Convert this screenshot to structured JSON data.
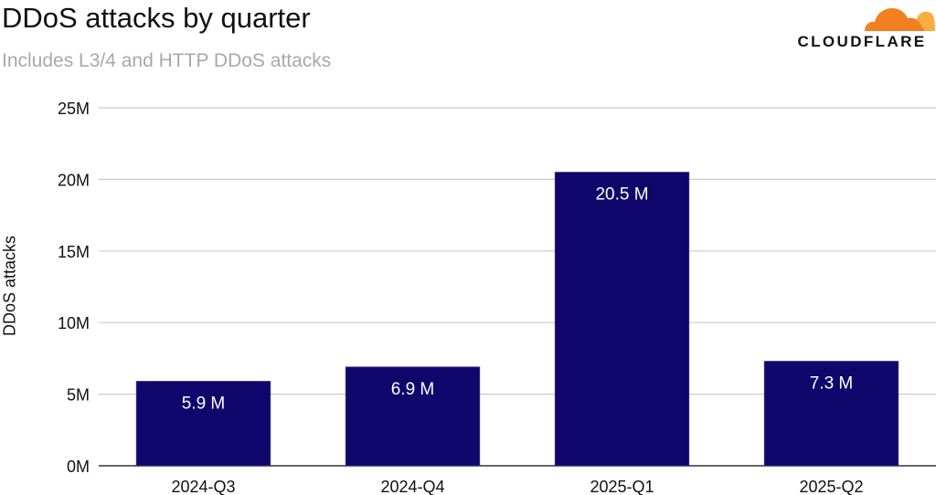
{
  "header": {
    "title": "DDoS attacks by quarter",
    "subtitle": "Includes L3/4 and HTTP DDoS attacks"
  },
  "logo": {
    "text": "CLOUDFLARE",
    "icon": "cloud-icon",
    "colors": {
      "orange_dark": "#f38020",
      "orange_light": "#faae40"
    }
  },
  "chart_data": {
    "type": "bar",
    "title": "DDoS attacks by quarter",
    "subtitle": "Includes L3/4 and HTTP DDoS attacks",
    "xlabel": "",
    "ylabel": "DDoS attacks",
    "categories": [
      "2024-Q3",
      "2024-Q4",
      "2025-Q1",
      "2025-Q2"
    ],
    "values": [
      5.9,
      6.9,
      20.5,
      7.3
    ],
    "value_unit": "M",
    "data_labels": [
      "5.9 M",
      "6.9 M",
      "20.5 M",
      "7.3 M"
    ],
    "ylim": [
      0,
      25
    ],
    "yticks": [
      0,
      5,
      10,
      15,
      20,
      25
    ],
    "ytick_labels": [
      "0M",
      "5M",
      "10M",
      "15M",
      "20M",
      "25M"
    ],
    "grid": true,
    "legend": "none",
    "colors": {
      "bar": "#11066b",
      "label": "#ffffff",
      "grid": "#cccccc",
      "axis": "#333333",
      "tick_text": "#111111"
    }
  }
}
